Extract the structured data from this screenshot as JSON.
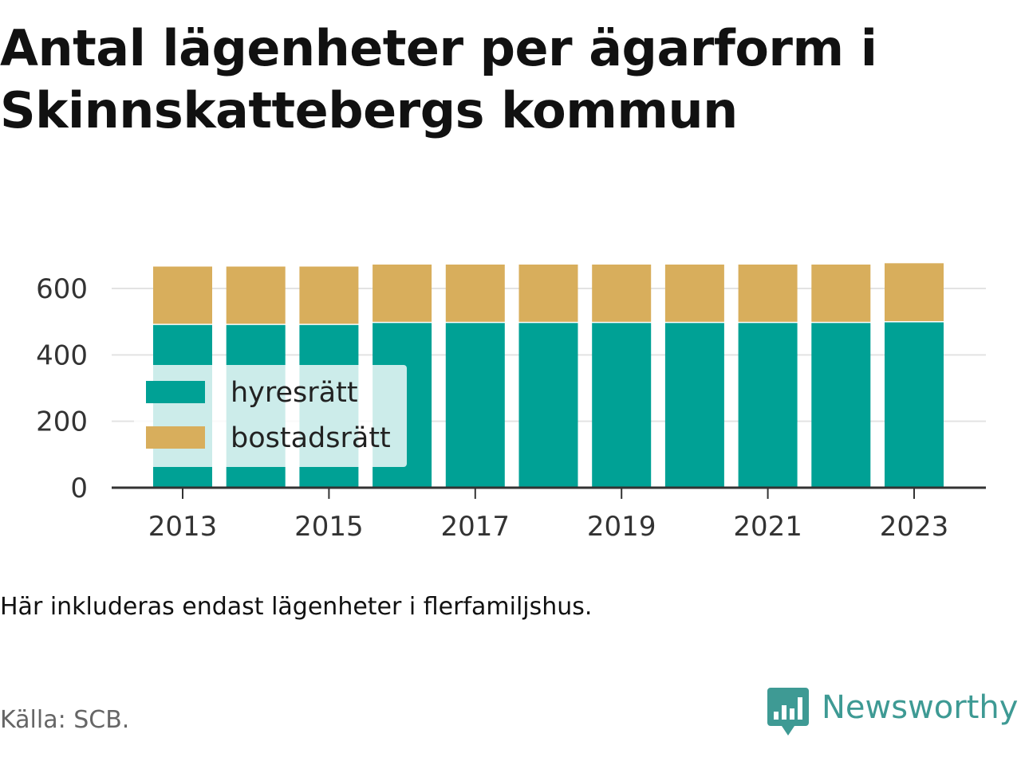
{
  "title": "Antal lägenheter per ägarform i Skinnskattebergs kommun",
  "note": "Här inkluderas endast lägenheter i flerfamiljshus.",
  "source": "Källa: SCB.",
  "brand": {
    "name": "Newsworthy",
    "icon": "newsworthy-logo-icon",
    "color": "#3e9a94"
  },
  "chart_data": {
    "type": "bar",
    "stacked": true,
    "categories": [
      "2013",
      "2014",
      "2015",
      "2016",
      "2017",
      "2018",
      "2019",
      "2020",
      "2021",
      "2022",
      "2023"
    ],
    "x_tick_labels": [
      "2013",
      "2015",
      "2017",
      "2019",
      "2021",
      "2023"
    ],
    "series": [
      {
        "name": "hyresrätt",
        "color": "#00a195",
        "values": [
          490,
          490,
          490,
          496,
          496,
          496,
          496,
          496,
          496,
          496,
          498
        ]
      },
      {
        "name": "bostadsrätt",
        "color": "#d8ae5c",
        "values": [
          176,
          176,
          176,
          176,
          176,
          176,
          176,
          176,
          176,
          176,
          178
        ]
      }
    ],
    "y_ticks": [
      0,
      200,
      400,
      600
    ],
    "ylim": [
      0,
      680
    ],
    "grid": true,
    "legend_position": "bottom-left"
  }
}
